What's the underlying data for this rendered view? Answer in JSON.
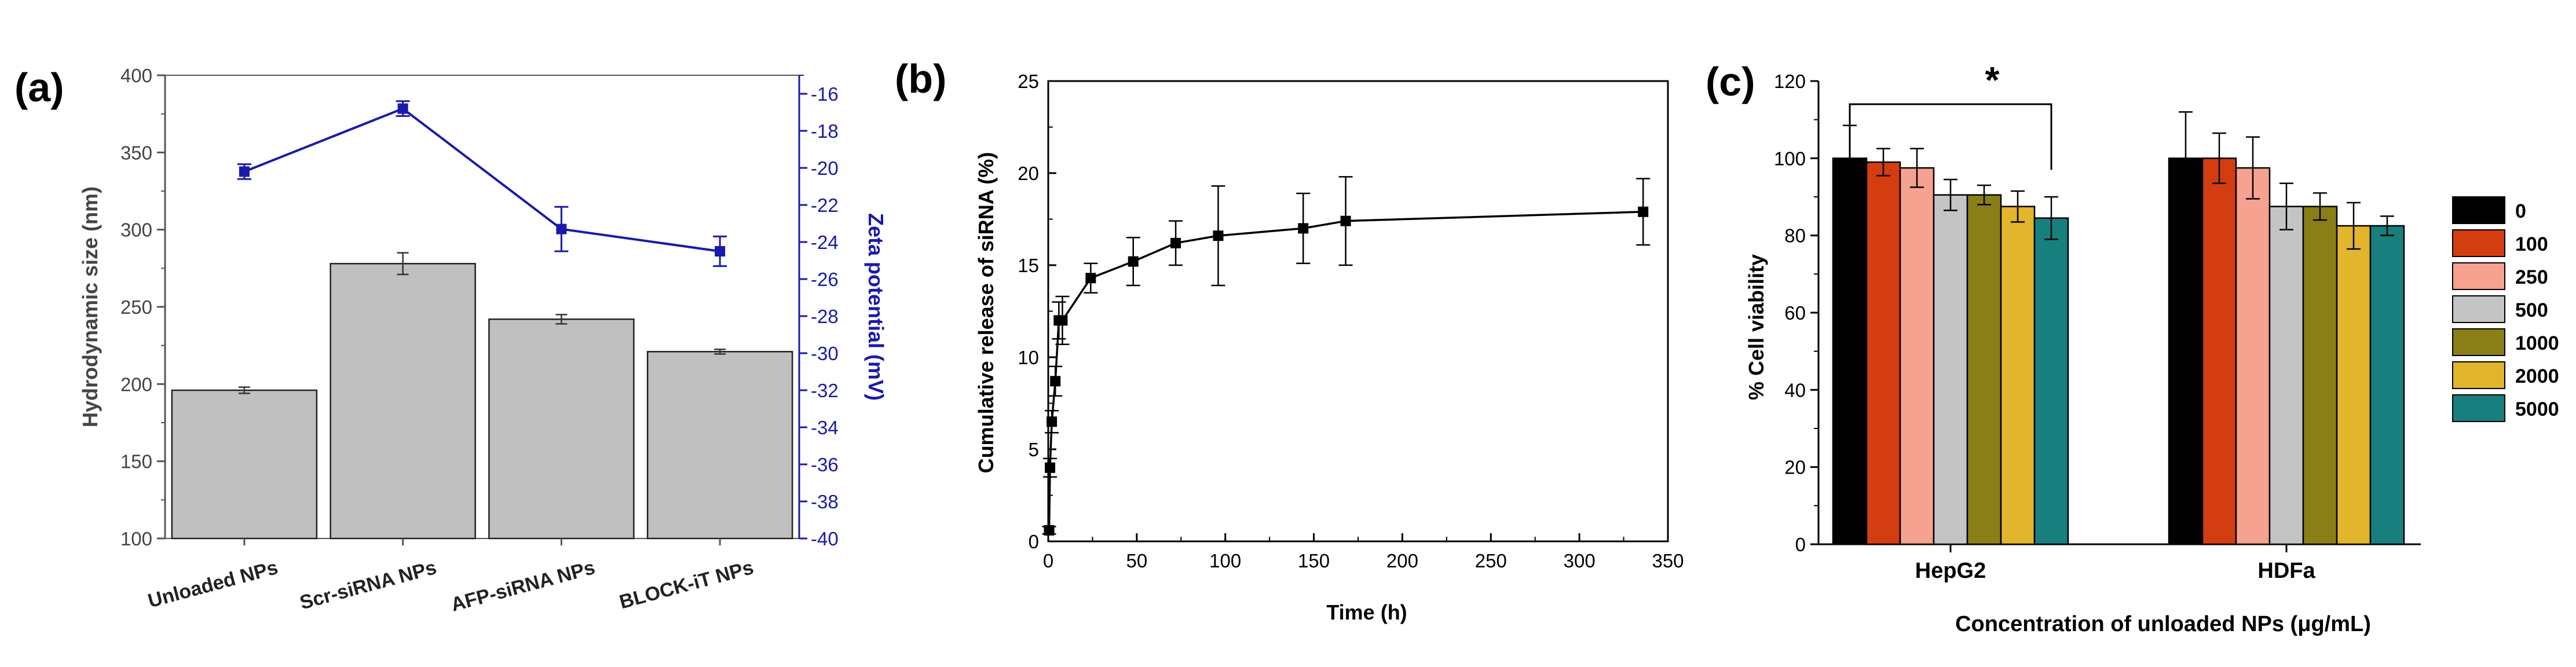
{
  "chart_data": [
    {
      "panel_label": "(a)",
      "type": "bar",
      "categories": [
        "Unloaded NPs",
        "Scr-siRNA NPs",
        "AFP-siRNA NPs",
        "BLOCK-iT NPs"
      ],
      "bar_series": {
        "name": "Hydrodynamic size",
        "values": [
          196,
          278,
          242,
          221
        ],
        "errors": [
          2,
          7,
          3,
          1.5
        ],
        "color": "#c0c0c0"
      },
      "line_series": {
        "name": "Zeta potential",
        "values": [
          -20.2,
          -16.8,
          -23.3,
          -24.5
        ],
        "errors": [
          0.4,
          0.4,
          1.2,
          0.8
        ],
        "color": "#1a1aa8"
      },
      "ylabel": "Hydrodynamic size (nm)",
      "y2label": "Zeta potential (mV)",
      "ylim": [
        100,
        400
      ],
      "y2lim": [
        -40,
        -15
      ],
      "yticks": [
        "100",
        "150",
        "200",
        "250",
        "300",
        "350",
        "400"
      ],
      "y2ticks": [
        "-16",
        "-18",
        "-20",
        "-22",
        "-24",
        "-26",
        "-28",
        "-30",
        "-32",
        "-34",
        "-36",
        "-38",
        "-40"
      ]
    },
    {
      "panel_label": "(b)",
      "type": "line",
      "series": [
        {
          "name": "Cumulative release",
          "x": [
            0.5,
            1,
            2,
            4,
            6,
            8,
            24,
            48,
            72,
            96,
            144,
            168,
            336
          ],
          "y": [
            0.6,
            4,
            6.5,
            8.7,
            12,
            12,
            14.3,
            15.2,
            16.2,
            16.6,
            17,
            17.4,
            17.9
          ],
          "errors": [
            0.2,
            0.5,
            0.6,
            0.8,
            1.0,
            1.3,
            0.8,
            1.3,
            1.2,
            2.7,
            1.9,
            2.4,
            1.8
          ]
        }
      ],
      "xlabel": "Time (h)",
      "ylabel": "Cumulative release of siRNA (%)",
      "xlim": [
        0,
        350
      ],
      "ylim": [
        0,
        25
      ],
      "xticks": [
        "0",
        "50",
        "100",
        "150",
        "200",
        "250",
        "300",
        "350"
      ],
      "yticks": [
        "0",
        "5",
        "10",
        "15",
        "20",
        "25"
      ]
    },
    {
      "panel_label": "(c)",
      "type": "bar",
      "categories": [
        "HepG2",
        "HDFa"
      ],
      "series": [
        {
          "name": "0",
          "values": [
            100,
            100
          ],
          "errors": [
            8.5,
            12
          ],
          "color": "#000000"
        },
        {
          "name": "100",
          "values": [
            99,
            100
          ],
          "errors": [
            3.5,
            6.5
          ],
          "color": "#d33d10"
        },
        {
          "name": "250",
          "values": [
            97.5,
            97.5
          ],
          "errors": [
            5,
            8
          ],
          "color": "#f7a190"
        },
        {
          "name": "500",
          "values": [
            90.5,
            87.5
          ],
          "errors": [
            4,
            6
          ],
          "color": "#c4c4c4"
        },
        {
          "name": "1000",
          "values": [
            90.5,
            87.5
          ],
          "errors": [
            2.5,
            3.5
          ],
          "color": "#8a7e16"
        },
        {
          "name": "2000",
          "values": [
            87.5,
            82.5
          ],
          "errors": [
            4,
            6
          ],
          "color": "#e1b52c"
        },
        {
          "name": "5000",
          "values": [
            84.5,
            82.5
          ],
          "errors": [
            5.5,
            2.5
          ],
          "color": "#17807e"
        }
      ],
      "xlabel": "Concentration of unloaded NPs (μg/mL)",
      "ylabel": "% Cell viability",
      "ylim": [
        0,
        120
      ],
      "yticks": [
        "0",
        "20",
        "40",
        "60",
        "80",
        "100",
        "120"
      ],
      "annotation": "*"
    }
  ]
}
